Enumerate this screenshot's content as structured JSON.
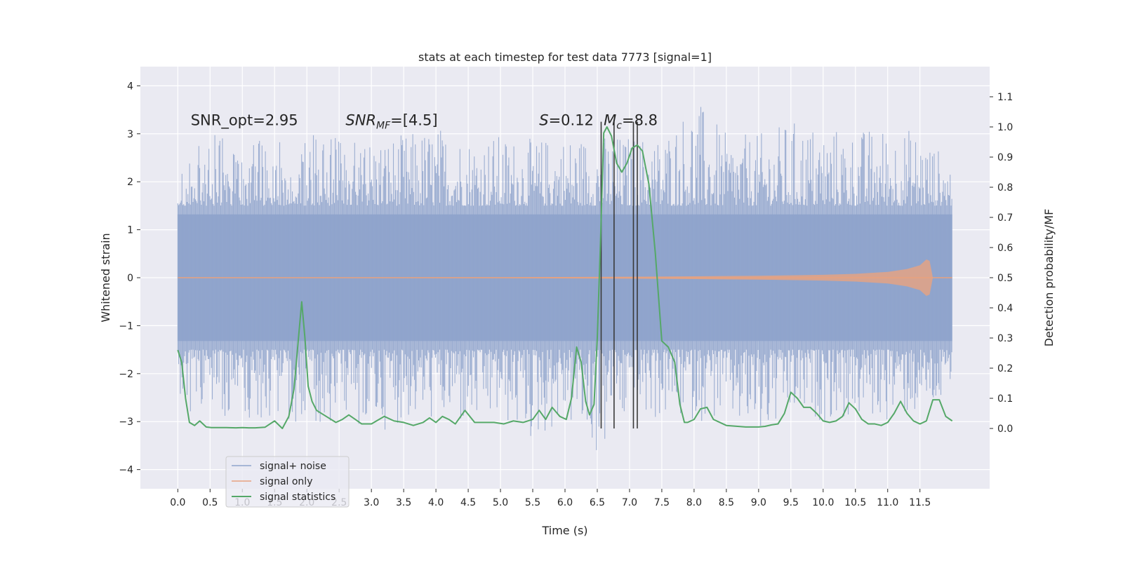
{
  "chart_data": {
    "type": "line",
    "title": "stats at each timestep for test data 7773 [signal=1]",
    "xlabel": "Time (s)",
    "ylabel": "Whitened strain",
    "ylabel_right": "Detection probability/MF",
    "xlim": [
      -0.58,
      12.58
    ],
    "ylim": [
      -4.4,
      4.4
    ],
    "ylim_right": [
      -0.2,
      1.2
    ],
    "x_ticks": [
      0.0,
      0.5,
      1.0,
      1.5,
      2.0,
      2.5,
      3.0,
      3.5,
      4.0,
      4.5,
      5.0,
      5.5,
      6.0,
      6.5,
      7.0,
      7.5,
      8.0,
      8.5,
      9.0,
      9.5,
      10.0,
      10.5,
      11.0,
      11.5
    ],
    "x_tick_labels": [
      "0.0",
      "0.5",
      "1.0",
      "1.5",
      "2.0",
      "2.5",
      "3.0",
      "3.5",
      "4.0",
      "4.5",
      "5.0",
      "5.5",
      "6.0",
      "6.5",
      "7.0",
      "7.5",
      "8.0",
      "8.5",
      "9.0",
      "9.5",
      "10.0",
      "10.5",
      "11.0",
      "11.5"
    ],
    "y_ticks": [
      -4,
      -3,
      -2,
      -1,
      0,
      1,
      2,
      3,
      4
    ],
    "y_tick_labels": [
      "−4",
      "−3",
      "−2",
      "−1",
      "0",
      "1",
      "2",
      "3",
      "4"
    ],
    "y_right_ticks": [
      0.0,
      0.1,
      0.2,
      0.3,
      0.4,
      0.5,
      0.6,
      0.7,
      0.8,
      0.9,
      1.0,
      1.1
    ],
    "y_right_tick_labels": [
      "0.0",
      "0.1",
      "0.2",
      "0.3",
      "0.4",
      "0.5",
      "0.6",
      "0.7",
      "0.8",
      "0.9",
      "1.0",
      "1.1"
    ],
    "grid": true,
    "legend_position": "lower-left",
    "annotations": [
      {
        "text": "SNR_opt=2.95",
        "x": 0.2,
        "y": 3.3
      },
      {
        "text": "SNR_MF=[4.5]",
        "x": 2.6,
        "y": 3.3
      },
      {
        "text": "S=0.12",
        "x": 5.6,
        "y": 3.3
      },
      {
        "text": "M_c=8.8",
        "x": 6.6,
        "y": 3.3
      }
    ],
    "vertical_lines_x": [
      6.56,
      6.76,
      7.06,
      7.12
    ],
    "series": [
      {
        "name": "signal+ noise",
        "color": "#8fa4cc",
        "axis": "left",
        "x_range": [
          0.0,
          12.0
        ],
        "envelope": {
          "x": [
            0.0,
            0.5,
            1.0,
            1.5,
            2.0,
            2.5,
            3.0,
            3.5,
            4.0,
            4.5,
            5.0,
            5.5,
            6.0,
            6.5,
            7.0,
            7.5,
            8.0,
            8.5,
            9.0,
            9.5,
            10.0,
            10.5,
            11.0,
            11.5,
            12.0
          ],
          "upper": [
            2.4,
            3.0,
            2.9,
            2.9,
            3.0,
            2.9,
            3.0,
            3.0,
            3.2,
            3.0,
            3.0,
            2.9,
            3.0,
            3.0,
            3.0,
            3.0,
            3.8,
            3.0,
            3.0,
            3.3,
            3.2,
            3.1,
            3.2,
            3.1,
            2.4
          ],
          "lower": [
            -2.8,
            -2.9,
            -2.9,
            -3.0,
            -3.0,
            -3.1,
            -3.3,
            -3.0,
            -3.0,
            -3.2,
            -3.0,
            -3.5,
            -3.0,
            -3.8,
            -3.0,
            -3.0,
            -3.0,
            -3.0,
            -3.5,
            -3.0,
            -3.0,
            -3.0,
            -3.0,
            -2.9,
            -2.7
          ]
        }
      },
      {
        "name": "signal only",
        "color": "#e8a27f",
        "axis": "left",
        "x": [
          0.0,
          5.0,
          7.0,
          8.0,
          9.0,
          10.0,
          10.5,
          11.0,
          11.3,
          11.5,
          11.6,
          11.65,
          11.7,
          12.0
        ],
        "amplitude": [
          0.0,
          0.01,
          0.02,
          0.03,
          0.04,
          0.06,
          0.08,
          0.12,
          0.18,
          0.26,
          0.38,
          0.35,
          0.0,
          0.0
        ]
      },
      {
        "name": "signal statistics",
        "color": "#55a868",
        "axis": "right",
        "x": [
          0.0,
          0.06,
          0.12,
          0.18,
          0.26,
          0.34,
          0.44,
          0.52,
          0.6,
          0.75,
          0.9,
          1.0,
          1.1,
          1.2,
          1.35,
          1.5,
          1.62,
          1.72,
          1.8,
          1.87,
          1.92,
          1.97,
          2.02,
          2.08,
          2.15,
          2.3,
          2.45,
          2.55,
          2.65,
          2.75,
          2.85,
          3.0,
          3.2,
          3.35,
          3.5,
          3.65,
          3.8,
          3.9,
          4.0,
          4.1,
          4.2,
          4.3,
          4.45,
          4.6,
          4.75,
          4.9,
          5.05,
          5.2,
          5.35,
          5.5,
          5.6,
          5.7,
          5.8,
          5.92,
          6.02,
          6.1,
          6.18,
          6.25,
          6.32,
          6.38,
          6.45,
          6.5,
          6.55,
          6.6,
          6.65,
          6.72,
          6.8,
          6.88,
          6.96,
          7.04,
          7.12,
          7.2,
          7.3,
          7.4,
          7.5,
          7.6,
          7.7,
          7.78,
          7.85,
          7.9,
          8.0,
          8.1,
          8.2,
          8.3,
          8.5,
          8.8,
          9.0,
          9.1,
          9.2,
          9.3,
          9.4,
          9.5,
          9.6,
          9.7,
          9.8,
          9.9,
          10.0,
          10.1,
          10.2,
          10.3,
          10.4,
          10.5,
          10.6,
          10.7,
          10.8,
          10.9,
          11.0,
          11.1,
          11.2,
          11.3,
          11.4,
          11.5,
          11.6,
          11.7,
          11.8,
          11.9,
          12.0
        ],
        "values": [
          0.26,
          0.22,
          0.1,
          0.02,
          0.01,
          0.025,
          0.005,
          0.003,
          0.003,
          0.003,
          0.002,
          0.003,
          0.002,
          0.002,
          0.004,
          0.025,
          0.0,
          0.04,
          0.13,
          0.3,
          0.42,
          0.3,
          0.14,
          0.09,
          0.06,
          0.04,
          0.02,
          0.03,
          0.045,
          0.03,
          0.015,
          0.015,
          0.04,
          0.025,
          0.02,
          0.01,
          0.02,
          0.035,
          0.02,
          0.04,
          0.03,
          0.015,
          0.06,
          0.02,
          0.02,
          0.02,
          0.015,
          0.025,
          0.02,
          0.03,
          0.06,
          0.03,
          0.07,
          0.04,
          0.03,
          0.1,
          0.27,
          0.22,
          0.09,
          0.045,
          0.08,
          0.3,
          0.62,
          0.98,
          1.0,
          0.97,
          0.88,
          0.85,
          0.88,
          0.93,
          0.94,
          0.92,
          0.81,
          0.58,
          0.29,
          0.27,
          0.22,
          0.08,
          0.02,
          0.02,
          0.03,
          0.065,
          0.07,
          0.03,
          0.01,
          0.005,
          0.005,
          0.007,
          0.012,
          0.015,
          0.05,
          0.12,
          0.1,
          0.07,
          0.07,
          0.05,
          0.025,
          0.02,
          0.025,
          0.04,
          0.085,
          0.065,
          0.03,
          0.015,
          0.015,
          0.01,
          0.02,
          0.05,
          0.09,
          0.05,
          0.025,
          0.015,
          0.025,
          0.095,
          0.095,
          0.04,
          0.025
        ]
      }
    ]
  }
}
